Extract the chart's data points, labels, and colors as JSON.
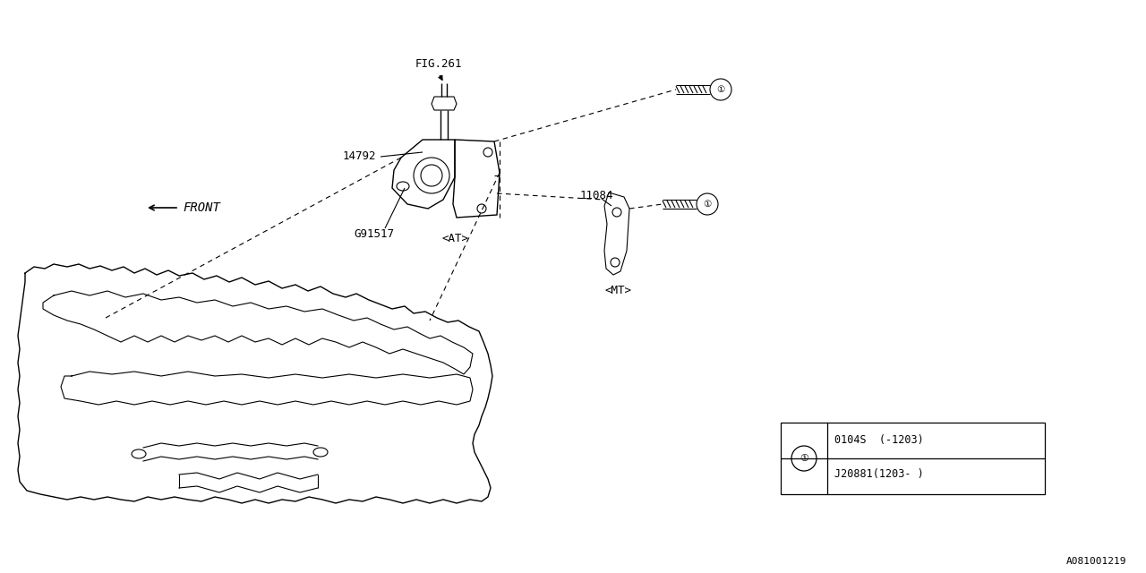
{
  "bg_color": "#ffffff",
  "line_color": "#000000",
  "fig_width": 12.8,
  "fig_height": 6.4,
  "watermark": "A081001219",
  "fig261_label": "FIG.261",
  "label_14792": "14792",
  "label_G91517": "G91517",
  "label_AT": "<AT>",
  "label_11084": "11084",
  "label_MT": "<MT>",
  "label_FRONT": "FRONT",
  "legend_row1": "0104S  (-1203)",
  "legend_row2": "J20881(1203- )"
}
